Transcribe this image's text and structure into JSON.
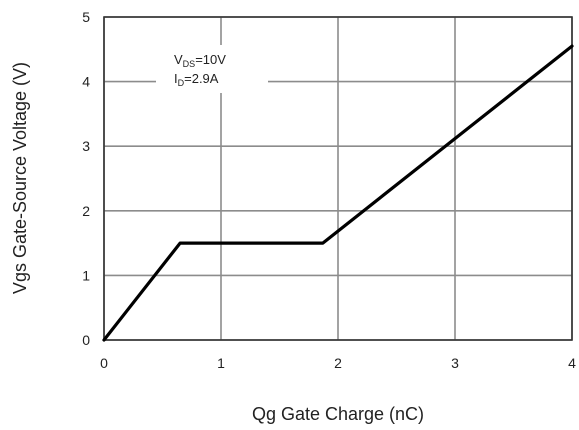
{
  "chart_data": {
    "type": "line",
    "title": "",
    "xlabel": "Qg Gate Charge (nC)",
    "ylabel": "Vgs Gate-Source Voltage (V)",
    "xlim": [
      0,
      4
    ],
    "ylim": [
      0,
      5
    ],
    "x_ticks": [
      "0",
      "1",
      "2",
      "3",
      "4"
    ],
    "y_ticks": [
      "0",
      "1",
      "2",
      "3",
      "4",
      "5"
    ],
    "grid": true,
    "series": [
      {
        "x": [
          0,
          0.65,
          1.87,
          4.0
        ],
        "y": [
          0,
          1.5,
          1.5,
          4.55
        ]
      }
    ],
    "annotation": {
      "line1_main": "V",
      "line1_sub": "DS",
      "line1_value": "=10V",
      "line2_main": "I",
      "line2_sub": "D",
      "line2_value": "=2.9A"
    },
    "colors": {
      "line": "#000000",
      "grid": "#8c8c8c",
      "frame": "#333333"
    }
  }
}
